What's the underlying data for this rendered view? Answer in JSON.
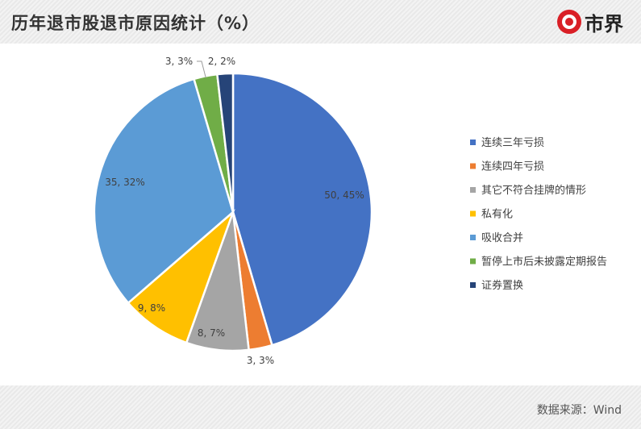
{
  "header": {
    "title": "历年退市股退市原因统计（%）",
    "logo_text": "市界"
  },
  "footer": {
    "source": "数据来源：Wind"
  },
  "colors": {
    "series": [
      "#4472c4",
      "#ed7d31",
      "#a5a5a5",
      "#ffc000",
      "#5b9bd5",
      "#70ad47",
      "#264478"
    ]
  },
  "chart_data": {
    "type": "pie",
    "title": "历年退市股退市原因统计（%）",
    "legend_position": "right",
    "categories": [
      "连续三年亏损",
      "连续四年亏损",
      "其它不符合挂牌的情形",
      "私有化",
      "吸收合并",
      "暂停上市后未披露定期报告",
      "证券置换"
    ],
    "values": [
      50,
      3,
      8,
      9,
      35,
      3,
      2
    ],
    "data_labels": [
      "50, 45%",
      "3, 3%",
      "8, 7%",
      "9, 8%",
      "35, 32%",
      "3, 3%",
      "2, 2%"
    ]
  }
}
